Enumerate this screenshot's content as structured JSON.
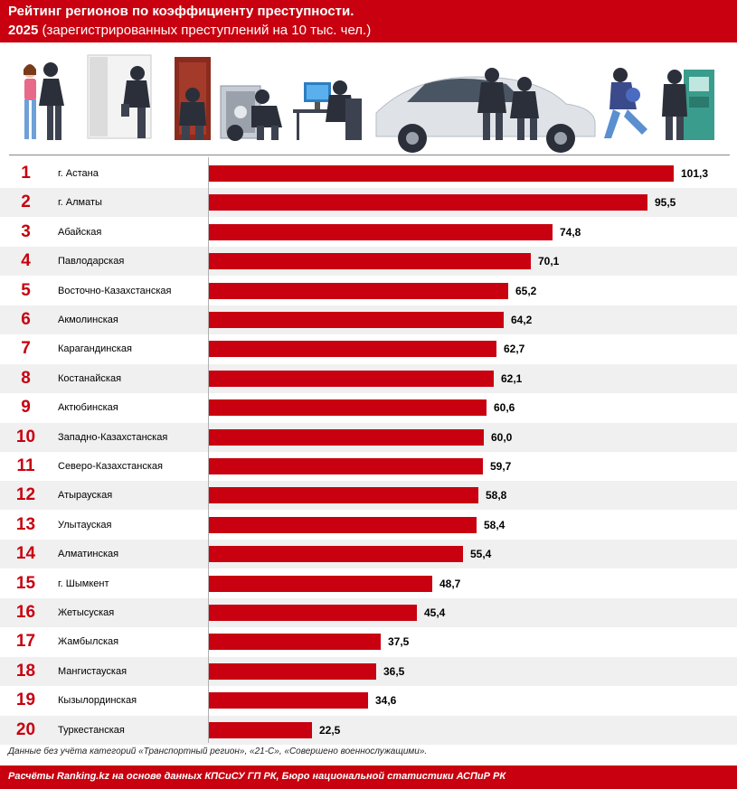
{
  "header": {
    "title_line1": "Рейтинг регионов по коэффициенту преступности.",
    "title_year": "2025",
    "title_line2": "(зарегистрированных преступлений на 10 тыс. чел.)"
  },
  "illustration": {
    "icons": [
      "thief-snatching-phone-icon",
      "burglar-window-icon",
      "burglar-door-icon",
      "safe-cracker-icon",
      "hacker-computer-icon",
      "car-thieves-icon",
      "running-thief-icon",
      "atm-thief-icon"
    ]
  },
  "colors": {
    "accent": "#c8000f",
    "row_alt": "#f0f0f0"
  },
  "chart_data": {
    "type": "bar",
    "orientation": "horizontal",
    "title": "Рейтинг регионов по коэффициенту преступности. 2025 (зарегистрированных преступлений на 10 тыс. чел.)",
    "xlim": [
      0,
      101.3
    ],
    "ranks": [
      "1",
      "2",
      "3",
      "4",
      "5",
      "6",
      "7",
      "8",
      "9",
      "10",
      "11",
      "12",
      "13",
      "14",
      "15",
      "16",
      "17",
      "18",
      "19",
      "20"
    ],
    "categories": [
      "г. Астана",
      "г. Алматы",
      "Абайская",
      "Павлодарская",
      "Восточно-Казахстанская",
      "Акмолинская",
      "Карагандинская",
      "Костанайская",
      "Актюбинская",
      "Западно-Казахстанская",
      "Северо-Казахстанская",
      "Атырауская",
      "Улытауская",
      "Алматинская",
      "г. Шымкент",
      "Жетысуская",
      "Жамбылская",
      "Мангистауская",
      "Кызылординская",
      "Туркестанская"
    ],
    "values": [
      101.3,
      95.5,
      74.8,
      70.1,
      65.2,
      64.2,
      62.7,
      62.1,
      60.6,
      60.0,
      59.7,
      58.8,
      58.4,
      55.4,
      48.7,
      45.4,
      37.5,
      36.5,
      34.6,
      22.5
    ],
    "value_labels": [
      "101,3",
      "95,5",
      "74,8",
      "70,1",
      "65,2",
      "64,2",
      "62,7",
      "62,1",
      "60,6",
      "60,0",
      "59,7",
      "58,8",
      "58,4",
      "55,4",
      "48,7",
      "45,4",
      "37,5",
      "36,5",
      "34,6",
      "22,5"
    ]
  },
  "footnote": "Данные без учёта категорий «Транспортный регион», «21-С», «Совершено военнослужащими».",
  "footer": "Расчёты Ranking.kz на основе данных КПСиСУ ГП РК, Бюро национальной статистики АСПиР РК"
}
